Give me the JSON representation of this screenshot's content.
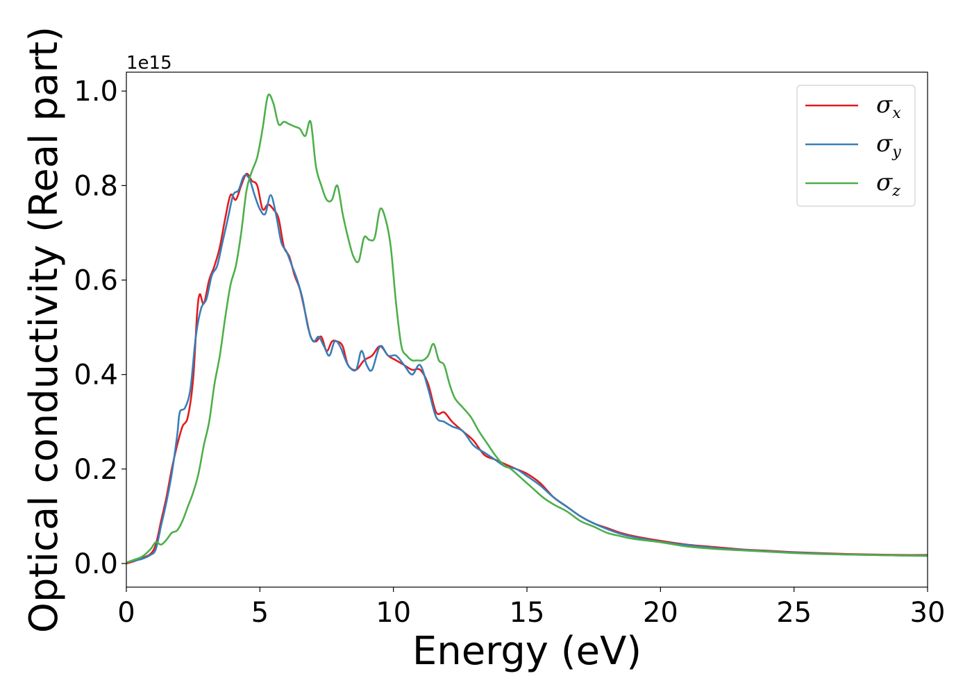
{
  "chart_data": {
    "type": "line",
    "xlabel": "Energy (eV)",
    "ylabel": "Optical conductivity (Real part)",
    "y_offset_label": "1e15",
    "xlim": [
      0,
      30
    ],
    "ylim": [
      -0.05,
      1.04
    ],
    "x_ticks": [
      0,
      5,
      10,
      15,
      20,
      25,
      30
    ],
    "x_tick_labels": [
      "0",
      "5",
      "10",
      "15",
      "20",
      "25",
      "30"
    ],
    "y_ticks": [
      0.0,
      0.2,
      0.4,
      0.6,
      0.8,
      1.0
    ],
    "y_tick_labels": [
      "0.0",
      "0.2",
      "0.4",
      "0.6",
      "0.8",
      "1.0"
    ],
    "grid": false,
    "legend_position": "top-right",
    "series": [
      {
        "name": "σ",
        "sub": "x",
        "color": "#e41a1c",
        "points": [
          [
            0,
            0.0
          ],
          [
            0.3,
            0.005
          ],
          [
            0.6,
            0.012
          ],
          [
            0.9,
            0.02
          ],
          [
            1.1,
            0.04
          ],
          [
            1.3,
            0.09
          ],
          [
            1.5,
            0.14
          ],
          [
            1.7,
            0.2
          ],
          [
            1.9,
            0.25
          ],
          [
            2.1,
            0.29
          ],
          [
            2.3,
            0.31
          ],
          [
            2.5,
            0.39
          ],
          [
            2.65,
            0.53
          ],
          [
            2.75,
            0.57
          ],
          [
            2.9,
            0.55
          ],
          [
            3.1,
            0.6
          ],
          [
            3.3,
            0.63
          ],
          [
            3.5,
            0.67
          ],
          [
            3.7,
            0.73
          ],
          [
            3.9,
            0.78
          ],
          [
            4.1,
            0.77
          ],
          [
            4.3,
            0.8
          ],
          [
            4.5,
            0.825
          ],
          [
            4.7,
            0.81
          ],
          [
            4.9,
            0.8
          ],
          [
            5.1,
            0.75
          ],
          [
            5.3,
            0.76
          ],
          [
            5.5,
            0.75
          ],
          [
            5.7,
            0.73
          ],
          [
            5.9,
            0.67
          ],
          [
            6.1,
            0.65
          ],
          [
            6.3,
            0.61
          ],
          [
            6.5,
            0.58
          ],
          [
            6.7,
            0.53
          ],
          [
            6.9,
            0.48
          ],
          [
            7.1,
            0.47
          ],
          [
            7.3,
            0.48
          ],
          [
            7.5,
            0.45
          ],
          [
            7.7,
            0.47
          ],
          [
            7.9,
            0.47
          ],
          [
            8.1,
            0.46
          ],
          [
            8.3,
            0.42
          ],
          [
            8.6,
            0.41
          ],
          [
            8.9,
            0.43
          ],
          [
            9.2,
            0.44
          ],
          [
            9.5,
            0.46
          ],
          [
            9.8,
            0.44
          ],
          [
            10.1,
            0.43
          ],
          [
            10.4,
            0.42
          ],
          [
            10.7,
            0.41
          ],
          [
            11.0,
            0.41
          ],
          [
            11.3,
            0.38
          ],
          [
            11.6,
            0.32
          ],
          [
            11.9,
            0.32
          ],
          [
            12.2,
            0.3
          ],
          [
            12.6,
            0.28
          ],
          [
            13.0,
            0.26
          ],
          [
            13.4,
            0.23
          ],
          [
            13.8,
            0.22
          ],
          [
            14.2,
            0.21
          ],
          [
            14.6,
            0.2
          ],
          [
            15.0,
            0.19
          ],
          [
            15.5,
            0.17
          ],
          [
            16.0,
            0.14
          ],
          [
            16.5,
            0.12
          ],
          [
            17.0,
            0.1
          ],
          [
            17.5,
            0.085
          ],
          [
            18.0,
            0.075
          ],
          [
            18.5,
            0.065
          ],
          [
            19.0,
            0.058
          ],
          [
            20.0,
            0.048
          ],
          [
            21.0,
            0.04
          ],
          [
            22.0,
            0.035
          ],
          [
            23.0,
            0.03
          ],
          [
            24.0,
            0.027
          ],
          [
            25.0,
            0.024
          ],
          [
            26.0,
            0.022
          ],
          [
            27.0,
            0.02
          ],
          [
            28.0,
            0.019
          ],
          [
            29.0,
            0.018
          ],
          [
            30.0,
            0.018
          ]
        ]
      },
      {
        "name": "σ",
        "sub": "y",
        "color": "#377eb8",
        "points": [
          [
            0,
            0.002
          ],
          [
            0.3,
            0.006
          ],
          [
            0.6,
            0.01
          ],
          [
            0.9,
            0.018
          ],
          [
            1.1,
            0.03
          ],
          [
            1.3,
            0.08
          ],
          [
            1.5,
            0.13
          ],
          [
            1.7,
            0.19
          ],
          [
            1.9,
            0.27
          ],
          [
            2.0,
            0.32
          ],
          [
            2.2,
            0.33
          ],
          [
            2.4,
            0.37
          ],
          [
            2.6,
            0.48
          ],
          [
            2.8,
            0.54
          ],
          [
            3.0,
            0.56
          ],
          [
            3.2,
            0.61
          ],
          [
            3.4,
            0.63
          ],
          [
            3.6,
            0.68
          ],
          [
            3.8,
            0.73
          ],
          [
            4.0,
            0.78
          ],
          [
            4.2,
            0.79
          ],
          [
            4.4,
            0.82
          ],
          [
            4.6,
            0.815
          ],
          [
            4.8,
            0.78
          ],
          [
            5.0,
            0.75
          ],
          [
            5.2,
            0.74
          ],
          [
            5.4,
            0.78
          ],
          [
            5.6,
            0.74
          ],
          [
            5.8,
            0.68
          ],
          [
            6.0,
            0.66
          ],
          [
            6.2,
            0.63
          ],
          [
            6.4,
            0.6
          ],
          [
            6.6,
            0.56
          ],
          [
            6.8,
            0.5
          ],
          [
            7.0,
            0.47
          ],
          [
            7.2,
            0.48
          ],
          [
            7.4,
            0.46
          ],
          [
            7.6,
            0.44
          ],
          [
            7.8,
            0.47
          ],
          [
            8.0,
            0.46
          ],
          [
            8.3,
            0.42
          ],
          [
            8.6,
            0.41
          ],
          [
            8.8,
            0.45
          ],
          [
            9.0,
            0.42
          ],
          [
            9.2,
            0.41
          ],
          [
            9.5,
            0.46
          ],
          [
            9.8,
            0.44
          ],
          [
            10.1,
            0.44
          ],
          [
            10.4,
            0.42
          ],
          [
            10.7,
            0.4
          ],
          [
            11.0,
            0.42
          ],
          [
            11.3,
            0.37
          ],
          [
            11.6,
            0.31
          ],
          [
            11.9,
            0.3
          ],
          [
            12.2,
            0.29
          ],
          [
            12.6,
            0.28
          ],
          [
            13.0,
            0.25
          ],
          [
            13.4,
            0.235
          ],
          [
            13.8,
            0.22
          ],
          [
            14.2,
            0.205
          ],
          [
            14.6,
            0.2
          ],
          [
            15.0,
            0.185
          ],
          [
            15.5,
            0.165
          ],
          [
            16.0,
            0.14
          ],
          [
            16.5,
            0.12
          ],
          [
            17.0,
            0.1
          ],
          [
            17.5,
            0.085
          ],
          [
            18.0,
            0.073
          ],
          [
            18.5,
            0.063
          ],
          [
            19.0,
            0.056
          ],
          [
            20.0,
            0.046
          ],
          [
            21.0,
            0.039
          ],
          [
            22.0,
            0.033
          ],
          [
            23.0,
            0.029
          ],
          [
            24.0,
            0.026
          ],
          [
            25.0,
            0.023
          ],
          [
            26.0,
            0.021
          ],
          [
            27.0,
            0.019
          ],
          [
            28.0,
            0.018
          ],
          [
            29.0,
            0.017
          ],
          [
            30.0,
            0.017
          ]
        ]
      },
      {
        "name": "σ",
        "sub": "z",
        "color": "#4daf4a",
        "points": [
          [
            0,
            0.002
          ],
          [
            0.3,
            0.008
          ],
          [
            0.6,
            0.015
          ],
          [
            0.9,
            0.03
          ],
          [
            1.1,
            0.045
          ],
          [
            1.3,
            0.04
          ],
          [
            1.5,
            0.05
          ],
          [
            1.7,
            0.065
          ],
          [
            1.9,
            0.07
          ],
          [
            2.1,
            0.09
          ],
          [
            2.3,
            0.12
          ],
          [
            2.5,
            0.15
          ],
          [
            2.7,
            0.19
          ],
          [
            2.9,
            0.25
          ],
          [
            3.1,
            0.3
          ],
          [
            3.3,
            0.38
          ],
          [
            3.5,
            0.44
          ],
          [
            3.7,
            0.52
          ],
          [
            3.9,
            0.59
          ],
          [
            4.1,
            0.63
          ],
          [
            4.3,
            0.7
          ],
          [
            4.5,
            0.79
          ],
          [
            4.7,
            0.83
          ],
          [
            4.9,
            0.86
          ],
          [
            5.1,
            0.92
          ],
          [
            5.3,
            0.99
          ],
          [
            5.5,
            0.975
          ],
          [
            5.7,
            0.93
          ],
          [
            5.9,
            0.935
          ],
          [
            6.1,
            0.93
          ],
          [
            6.3,
            0.925
          ],
          [
            6.5,
            0.92
          ],
          [
            6.7,
            0.905
          ],
          [
            6.9,
            0.935
          ],
          [
            7.1,
            0.84
          ],
          [
            7.3,
            0.8
          ],
          [
            7.5,
            0.77
          ],
          [
            7.7,
            0.77
          ],
          [
            7.9,
            0.8
          ],
          [
            8.1,
            0.74
          ],
          [
            8.3,
            0.69
          ],
          [
            8.5,
            0.65
          ],
          [
            8.7,
            0.64
          ],
          [
            8.9,
            0.69
          ],
          [
            9.1,
            0.685
          ],
          [
            9.3,
            0.69
          ],
          [
            9.5,
            0.75
          ],
          [
            9.7,
            0.73
          ],
          [
            9.9,
            0.67
          ],
          [
            10.1,
            0.55
          ],
          [
            10.3,
            0.46
          ],
          [
            10.5,
            0.44
          ],
          [
            10.7,
            0.43
          ],
          [
            10.9,
            0.43
          ],
          [
            11.1,
            0.43
          ],
          [
            11.3,
            0.44
          ],
          [
            11.5,
            0.465
          ],
          [
            11.7,
            0.43
          ],
          [
            11.9,
            0.42
          ],
          [
            12.1,
            0.38
          ],
          [
            12.3,
            0.35
          ],
          [
            12.6,
            0.33
          ],
          [
            12.9,
            0.31
          ],
          [
            13.2,
            0.28
          ],
          [
            13.5,
            0.255
          ],
          [
            13.8,
            0.23
          ],
          [
            14.1,
            0.21
          ],
          [
            14.4,
            0.2
          ],
          [
            14.8,
            0.18
          ],
          [
            15.2,
            0.16
          ],
          [
            15.6,
            0.14
          ],
          [
            16.0,
            0.125
          ],
          [
            16.5,
            0.11
          ],
          [
            17.0,
            0.09
          ],
          [
            17.5,
            0.078
          ],
          [
            18.0,
            0.065
          ],
          [
            18.5,
            0.058
          ],
          [
            19.0,
            0.052
          ],
          [
            20.0,
            0.045
          ],
          [
            21.0,
            0.036
          ],
          [
            22.0,
            0.031
          ],
          [
            23.0,
            0.028
          ],
          [
            24.0,
            0.025
          ],
          [
            25.0,
            0.022
          ],
          [
            26.0,
            0.02
          ],
          [
            27.0,
            0.019
          ],
          [
            28.0,
            0.018
          ],
          [
            29.0,
            0.017
          ],
          [
            30.0,
            0.016
          ]
        ]
      }
    ]
  }
}
